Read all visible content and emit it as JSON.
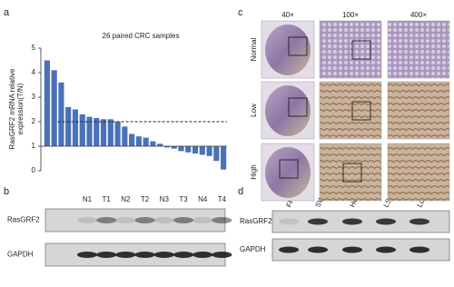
{
  "chart_data": {
    "type": "bar",
    "title": "26 paired CRC samples",
    "ylabel": [
      "RasGRF2 mRNA relative",
      "expression(T/N)"
    ],
    "values": [
      4.5,
      4.1,
      3.6,
      2.6,
      2.5,
      2.3,
      2.2,
      2.15,
      2.1,
      2.1,
      2.0,
      1.8,
      1.5,
      1.4,
      1.35,
      1.2,
      1.1,
      0.95,
      0.9,
      0.8,
      0.75,
      0.7,
      0.65,
      0.6,
      0.4,
      0.05
    ],
    "color": "#4a72b8",
    "baseline": 1,
    "threshold": 2,
    "ylim": [
      0,
      5
    ],
    "yticks": [
      0,
      1,
      2,
      3,
      4,
      5
    ]
  },
  "panels": {
    "a": {
      "label": "a"
    },
    "b": {
      "label": "b",
      "lanes": [
        "N1",
        "T1",
        "N2",
        "T2",
        "N3",
        "T3",
        "N4",
        "T4"
      ],
      "rows": [
        "RasGRF2",
        "GAPDH"
      ]
    },
    "c": {
      "label": "c",
      "columns": [
        "40×",
        "100×",
        "400×"
      ],
      "rows": [
        "Normal",
        "Low",
        "High"
      ]
    },
    "d": {
      "label": "d",
      "lanes": [
        "FHC",
        "SW480",
        "HCT116",
        "LS174T",
        "LoVo"
      ],
      "rows": [
        "RasGRF2",
        "GAPDH"
      ]
    }
  }
}
